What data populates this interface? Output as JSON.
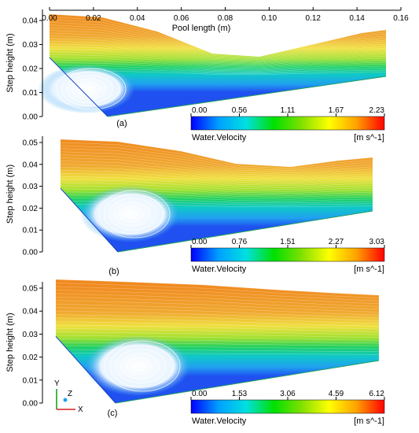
{
  "chart_data": [
    {
      "type": "heatmap",
      "panel_label": "(a)",
      "title": "",
      "xlabel": "Pool length (m)",
      "ylabel": "Step height (m)",
      "xlim": [
        0,
        0.16
      ],
      "ylim": [
        0,
        0.045
      ],
      "x_ticks": [
        "0.00",
        "0.02",
        "0.04",
        "0.06",
        "0.08",
        "0.10",
        "0.12",
        "0.14",
        "0.16"
      ],
      "y_ticks": [
        "0.00",
        "0.01",
        "0.02",
        "0.03",
        "0.04"
      ],
      "surface_profile": {
        "x": [
          0.0,
          0.02,
          0.04,
          0.06,
          0.08,
          0.1,
          0.12,
          0.14,
          0.15
        ],
        "y": [
          0.046,
          0.044,
          0.037,
          0.028,
          0.026,
          0.03,
          0.035,
          0.038,
          0.038
        ]
      },
      "colorbar": {
        "title": "Water.Velocity",
        "unit": "[m s^-1]",
        "ticks": [
          "0.00",
          "0.56",
          "1.11",
          "1.67",
          "2.23"
        ],
        "min": 0.0,
        "max": 2.23
      }
    },
    {
      "type": "heatmap",
      "panel_label": "(b)",
      "title": "",
      "xlabel": "",
      "ylabel": "Step height (m)",
      "ylim": [
        0,
        0.05
      ],
      "y_ticks": [
        "0.00",
        "0.01",
        "0.02",
        "0.03",
        "0.04",
        "0.05"
      ],
      "colorbar": {
        "title": "Water.Velocity",
        "unit": "[m s^-1]",
        "ticks": [
          "0.00",
          "0.76",
          "1.51",
          "2.27",
          "3.03"
        ],
        "min": 0.0,
        "max": 3.03
      }
    },
    {
      "type": "heatmap",
      "panel_label": "(c)",
      "title": "",
      "xlabel": "",
      "ylabel": "Step height (m)",
      "ylim": [
        0,
        0.055
      ],
      "y_ticks": [
        "0.00",
        "0.01",
        "0.02",
        "0.03",
        "0.04",
        "0.05"
      ],
      "colorbar": {
        "title": "Water.Velocity",
        "unit": "[m s^-1]",
        "ticks": [
          "0.00",
          "1.53",
          "3.06",
          "4.59",
          "6.12"
        ],
        "min": 0.0,
        "max": 6.12
      }
    }
  ],
  "axis_triad": {
    "y": "Y",
    "z": "Z",
    "x": "X"
  },
  "colormap": [
    "#0000ff",
    "#00a0ff",
    "#00e0e0",
    "#00e000",
    "#80e000",
    "#ffff00",
    "#ffa000",
    "#ff0000"
  ]
}
